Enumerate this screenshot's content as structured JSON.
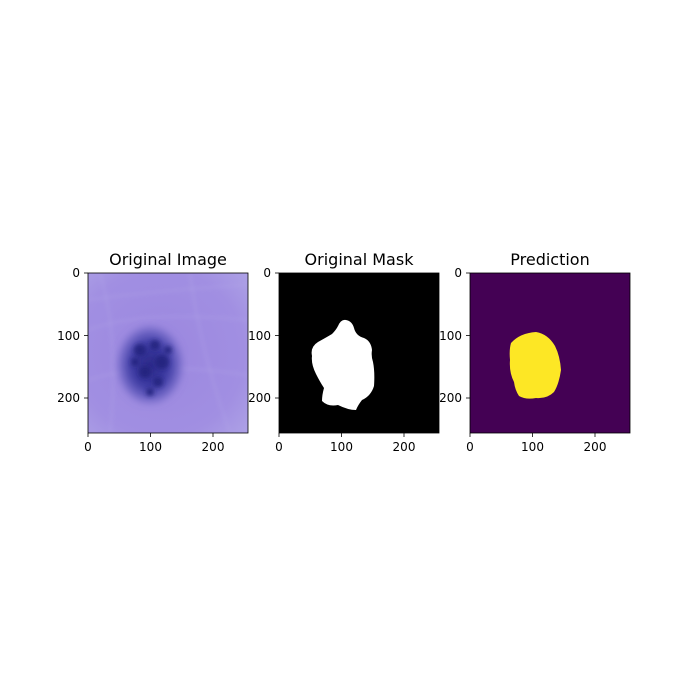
{
  "panels": [
    {
      "title": "Original Image",
      "xticks": [
        "0",
        "100",
        "200"
      ],
      "yticks": [
        "0",
        "100",
        "200"
      ],
      "content": "dermoscopic-image"
    },
    {
      "title": "Original Mask",
      "xticks": [
        "0",
        "100",
        "200"
      ],
      "yticks": [
        "0",
        "100",
        "200"
      ],
      "content": "binary-mask",
      "colors": {
        "background": "#000000",
        "lesion": "#ffffff"
      }
    },
    {
      "title": "Prediction",
      "xticks": [
        "0",
        "100",
        "200"
      ],
      "yticks": [
        "0",
        "100",
        "200"
      ],
      "content": "predicted-mask",
      "colors": {
        "background": "#440154",
        "lesion": "#fde725"
      }
    }
  ],
  "image_colors": {
    "skin": "#9a86de",
    "lesion": "#3b3aa0",
    "lesion_dark": "#262580"
  }
}
